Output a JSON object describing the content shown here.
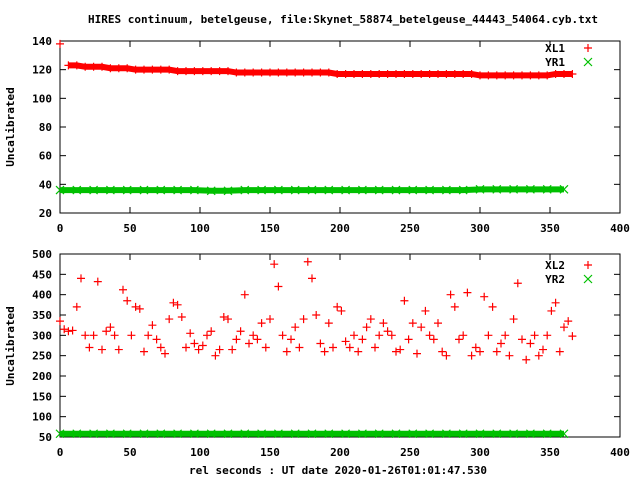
{
  "title": "HIRES continuum, betelgeuse, file:Skynet_58874_betelgeuse_44443_54064.cyb.txt",
  "chart_data": [
    {
      "type": "scatter",
      "ylabel": "Uncalibrated",
      "xlabel": "",
      "xlim": [
        0,
        400
      ],
      "ylim": [
        20,
        140
      ],
      "xticks": [
        0,
        50,
        100,
        150,
        200,
        250,
        300,
        350,
        400
      ],
      "yticks": [
        20,
        40,
        60,
        80,
        100,
        120,
        140
      ],
      "legend_position": "top-right",
      "series": [
        {
          "name": "XL1",
          "marker": "plus",
          "color": "#ff0000",
          "x_start": 0,
          "x_step": 6,
          "values": [
            138,
            123,
            123,
            122,
            122,
            122,
            121,
            121,
            121,
            120,
            120,
            120,
            120,
            120,
            119,
            119,
            119,
            119,
            119,
            119,
            119,
            118,
            118,
            118,
            118,
            118,
            118,
            118,
            118,
            118,
            118,
            118,
            118,
            117,
            117,
            117,
            117,
            117,
            117,
            117,
            117,
            117,
            117,
            117,
            117,
            117,
            117,
            117,
            117,
            117,
            116,
            116,
            116,
            116,
            116,
            116,
            116,
            116,
            116,
            117,
            117,
            117
          ]
        },
        {
          "name": "YR1",
          "marker": "cross",
          "color": "#00c000",
          "x_start": 0,
          "x_step": 12,
          "values": [
            36,
            36,
            36,
            36,
            36,
            36,
            36,
            36,
            36,
            35.5,
            35.5,
            36,
            36,
            36,
            36,
            36,
            36,
            36,
            36,
            36,
            36,
            36,
            36,
            36,
            36,
            36.5,
            36.5,
            36.5,
            36.5,
            36.5,
            36.5
          ]
        }
      ]
    },
    {
      "type": "scatter",
      "ylabel": "Uncalibrated",
      "xlabel": "rel seconds : UT date 2020-01-26T01:01:47.530",
      "xlim": [
        0,
        400
      ],
      "ylim": [
        50,
        500
      ],
      "xticks": [
        0,
        50,
        100,
        150,
        200,
        250,
        300,
        350,
        400
      ],
      "yticks": [
        50,
        100,
        150,
        200,
        250,
        300,
        350,
        400,
        450,
        500
      ],
      "legend_position": "top-right",
      "series": [
        {
          "name": "XL2",
          "marker": "plus",
          "color": "#ff0000",
          "x_start": 0,
          "x_step": 3,
          "values": [
            335,
            315,
            310,
            312,
            370,
            440,
            300,
            270,
            300,
            432,
            265,
            310,
            320,
            300,
            265,
            412,
            385,
            300,
            370,
            365,
            260,
            300,
            325,
            290,
            270,
            255,
            340,
            380,
            375,
            345,
            270,
            305,
            280,
            265,
            275,
            300,
            310,
            250,
            265,
            345,
            340,
            265,
            290,
            310,
            400,
            280,
            300,
            290,
            330,
            270,
            340,
            475,
            420,
            300,
            260,
            290,
            320,
            270,
            340,
            481,
            440,
            350,
            280,
            260,
            330,
            270,
            370,
            360,
            285,
            270,
            300,
            260,
            290,
            320,
            340,
            270,
            300,
            330,
            310,
            300,
            260,
            265,
            385,
            290,
            330,
            255,
            320,
            360,
            300,
            290,
            330,
            260,
            250,
            400,
            370,
            290,
            300,
            405,
            250,
            270,
            260,
            395,
            300,
            370,
            260,
            280,
            300,
            250,
            340,
            428,
            290,
            240,
            280,
            300,
            250,
            265,
            300,
            360,
            380,
            260,
            320,
            335,
            298
          ]
        },
        {
          "name": "YR2",
          "marker": "cross",
          "color": "#00c000",
          "x_start": 0,
          "x_step": 12,
          "values": [
            58,
            58,
            58,
            58,
            58,
            58,
            58,
            58,
            58,
            58,
            58,
            58,
            58,
            58,
            58,
            58,
            58,
            58,
            58,
            58,
            58,
            58,
            58,
            58,
            58,
            58,
            58,
            58,
            58,
            58,
            58
          ]
        }
      ]
    }
  ]
}
